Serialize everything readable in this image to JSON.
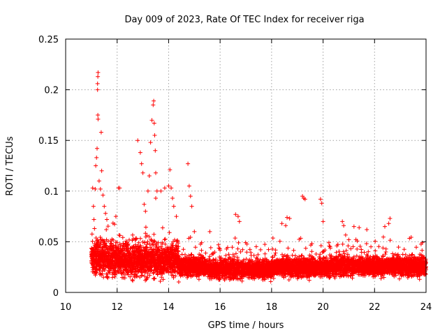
{
  "chart_data": {
    "type": "scatter",
    "title": "Day 009 of 2023, Rate Of TEC Index for receiver riga",
    "xlabel": "GPS time / hours",
    "ylabel": "ROTI / TECUs",
    "xlim": [
      10,
      24
    ],
    "ylim": [
      0,
      0.25
    ],
    "x_ticks": [
      10,
      12,
      14,
      16,
      18,
      20,
      22,
      24
    ],
    "x_tick_labels": [
      "10",
      "12",
      "14",
      "16",
      "18",
      "20",
      "22",
      "24"
    ],
    "y_ticks": [
      0,
      0.05,
      0.1,
      0.15,
      0.2,
      0.25
    ],
    "y_tick_labels": [
      "0",
      "0.05",
      "0.1",
      "0.15",
      "0.2",
      "0.25"
    ],
    "grid": true,
    "marker": "+",
    "color": "#ff0000",
    "data_start_hour": 11.0,
    "data_end_hour": 24.0,
    "series": [
      {
        "name": "ROTI",
        "points": [
          [
            11.05,
            0.103
          ],
          [
            11.08,
            0.085
          ],
          [
            11.1,
            0.072
          ],
          [
            11.12,
            0.063
          ],
          [
            11.15,
            0.102
          ],
          [
            11.17,
            0.125
          ],
          [
            11.2,
            0.133
          ],
          [
            11.22,
            0.142
          ],
          [
            11.24,
            0.2
          ],
          [
            11.24,
            0.206
          ],
          [
            11.25,
            0.213
          ],
          [
            11.26,
            0.217
          ],
          [
            11.25,
            0.175
          ],
          [
            11.26,
            0.171
          ],
          [
            11.3,
            0.11
          ],
          [
            11.35,
            0.102
          ],
          [
            11.38,
            0.158
          ],
          [
            11.4,
            0.12
          ],
          [
            11.45,
            0.096
          ],
          [
            11.5,
            0.085
          ],
          [
            11.55,
            0.078
          ],
          [
            11.6,
            0.072
          ],
          [
            11.95,
            0.075
          ],
          [
            12.05,
            0.103
          ],
          [
            12.1,
            0.103
          ],
          [
            12.8,
            0.15
          ],
          [
            12.9,
            0.138
          ],
          [
            12.95,
            0.127
          ],
          [
            13.0,
            0.118
          ],
          [
            13.05,
            0.087
          ],
          [
            13.1,
            0.08
          ],
          [
            13.2,
            0.1
          ],
          [
            13.25,
            0.115
          ],
          [
            13.3,
            0.148
          ],
          [
            13.35,
            0.17
          ],
          [
            13.4,
            0.185
          ],
          [
            13.42,
            0.189
          ],
          [
            13.44,
            0.167
          ],
          [
            13.46,
            0.155
          ],
          [
            13.48,
            0.14
          ],
          [
            13.5,
            0.118
          ],
          [
            13.5,
            0.093
          ],
          [
            13.55,
            0.1
          ],
          [
            13.7,
            0.1
          ],
          [
            13.85,
            0.103
          ],
          [
            14.0,
            0.105
          ],
          [
            14.05,
            0.121
          ],
          [
            14.1,
            0.103
          ],
          [
            14.15,
            0.093
          ],
          [
            14.2,
            0.085
          ],
          [
            14.3,
            0.075
          ],
          [
            14.75,
            0.127
          ],
          [
            14.8,
            0.105
          ],
          [
            14.85,
            0.095
          ],
          [
            14.9,
            0.085
          ],
          [
            15.0,
            0.06
          ],
          [
            15.6,
            0.06
          ],
          [
            16.6,
            0.077
          ],
          [
            16.7,
            0.075
          ],
          [
            16.75,
            0.07
          ],
          [
            18.4,
            0.068
          ],
          [
            18.55,
            0.066
          ],
          [
            18.6,
            0.074
          ],
          [
            18.7,
            0.073
          ],
          [
            19.2,
            0.095
          ],
          [
            19.25,
            0.093
          ],
          [
            19.3,
            0.092
          ],
          [
            19.9,
            0.092
          ],
          [
            19.95,
            0.088
          ],
          [
            20.0,
            0.07
          ],
          [
            20.75,
            0.07
          ],
          [
            20.8,
            0.066
          ],
          [
            21.2,
            0.065
          ],
          [
            21.4,
            0.064
          ],
          [
            21.7,
            0.062
          ],
          [
            22.4,
            0.065
          ],
          [
            22.6,
            0.073
          ],
          [
            22.55,
            0.068
          ]
        ]
      }
    ]
  }
}
